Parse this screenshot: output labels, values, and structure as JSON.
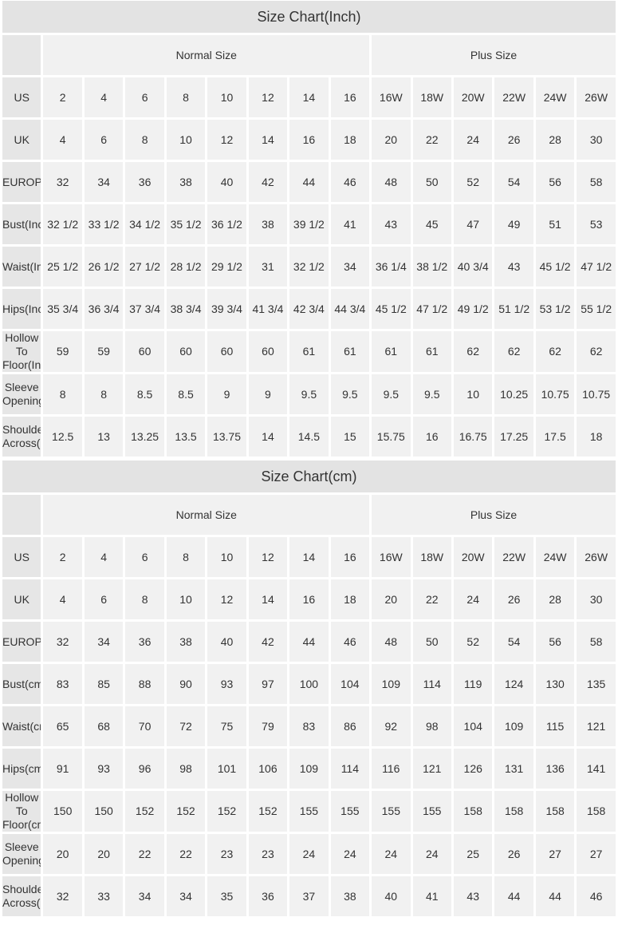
{
  "tables": [
    {
      "title": "Size Chart(Inch)",
      "group_headers": {
        "normal": "Normal Size",
        "plus": "Plus Size"
      },
      "normal_count": 8,
      "plus_count": 6,
      "rows": [
        {
          "label": "US",
          "values": [
            "2",
            "4",
            "6",
            "8",
            "10",
            "12",
            "14",
            "16",
            "16W",
            "18W",
            "20W",
            "22W",
            "24W",
            "26W"
          ]
        },
        {
          "label": "UK",
          "values": [
            "4",
            "6",
            "8",
            "10",
            "12",
            "14",
            "16",
            "18",
            "20",
            "22",
            "24",
            "26",
            "28",
            "30"
          ]
        },
        {
          "label": "EUROPE",
          "values": [
            "32",
            "34",
            "36",
            "38",
            "40",
            "42",
            "44",
            "46",
            "48",
            "50",
            "52",
            "54",
            "56",
            "58"
          ]
        },
        {
          "label": "Bust(Inch)",
          "values": [
            "32 1/2",
            "33 1/2",
            "34 1/2",
            "35 1/2",
            "36 1/2",
            "38",
            "39 1/2",
            "41",
            "43",
            "45",
            "47",
            "49",
            "51",
            "53"
          ]
        },
        {
          "label": "Waist(Inch)",
          "values": [
            "25 1/2",
            "26 1/2",
            "27 1/2",
            "28 1/2",
            "29 1/2",
            "31",
            "32 1/2",
            "34",
            "36 1/4",
            "38 1/2",
            "40 3/4",
            "43",
            "45 1/2",
            "47 1/2"
          ]
        },
        {
          "label": "Hips(Inch)",
          "values": [
            "35 3/4",
            "36 3/4",
            "37 3/4",
            "38 3/4",
            "39 3/4",
            "41 3/4",
            "42 3/4",
            "44 3/4",
            "45 1/2",
            "47 1/2",
            "49 1/2",
            "51 1/2",
            "53 1/2",
            "55 1/2"
          ]
        },
        {
          "label": "Hollow To Floor(Inch)",
          "values": [
            "59",
            "59",
            "60",
            "60",
            "60",
            "60",
            "61",
            "61",
            "61",
            "61",
            "62",
            "62",
            "62",
            "62"
          ]
        },
        {
          "label": "Sleeve Opening(Inch)",
          "values": [
            "8",
            "8",
            "8.5",
            "8.5",
            "9",
            "9",
            "9.5",
            "9.5",
            "9.5",
            "9.5",
            "10",
            "10.25",
            "10.75",
            "10.75"
          ]
        },
        {
          "label": "Shoulder Across(Inch)",
          "values": [
            "12.5",
            "13",
            "13.25",
            "13.5",
            "13.75",
            "14",
            "14.5",
            "15",
            "15.75",
            "16",
            "16.75",
            "17.25",
            "17.5",
            "18"
          ]
        }
      ]
    },
    {
      "title": "Size Chart(cm)",
      "group_headers": {
        "normal": "Normal Size",
        "plus": "Plus Size"
      },
      "normal_count": 8,
      "plus_count": 6,
      "rows": [
        {
          "label": "US",
          "values": [
            "2",
            "4",
            "6",
            "8",
            "10",
            "12",
            "14",
            "16",
            "16W",
            "18W",
            "20W",
            "22W",
            "24W",
            "26W"
          ]
        },
        {
          "label": "UK",
          "values": [
            "4",
            "6",
            "8",
            "10",
            "12",
            "14",
            "16",
            "18",
            "20",
            "22",
            "24",
            "26",
            "28",
            "30"
          ]
        },
        {
          "label": "EUROPE",
          "values": [
            "32",
            "34",
            "36",
            "38",
            "40",
            "42",
            "44",
            "46",
            "48",
            "50",
            "52",
            "54",
            "56",
            "58"
          ]
        },
        {
          "label": "Bust(cm)",
          "values": [
            "83",
            "85",
            "88",
            "90",
            "93",
            "97",
            "100",
            "104",
            "109",
            "114",
            "119",
            "124",
            "130",
            "135"
          ]
        },
        {
          "label": "Waist(cm)",
          "values": [
            "65",
            "68",
            "70",
            "72",
            "75",
            "79",
            "83",
            "86",
            "92",
            "98",
            "104",
            "109",
            "115",
            "121"
          ]
        },
        {
          "label": "Hips(cm)",
          "values": [
            "91",
            "93",
            "96",
            "98",
            "101",
            "106",
            "109",
            "114",
            "116",
            "121",
            "126",
            "131",
            "136",
            "141"
          ]
        },
        {
          "label": "Hollow To Floor(cm)",
          "values": [
            "150",
            "150",
            "152",
            "152",
            "152",
            "152",
            "155",
            "155",
            "155",
            "155",
            "158",
            "158",
            "158",
            "158"
          ]
        },
        {
          "label": "Sleeve Opening(cm)",
          "values": [
            "20",
            "20",
            "22",
            "22",
            "23",
            "23",
            "24",
            "24",
            "24",
            "24",
            "25",
            "26",
            "27",
            "27"
          ]
        },
        {
          "label": "Shoulder Across(cm)",
          "values": [
            "32",
            "33",
            "34",
            "34",
            "35",
            "36",
            "37",
            "38",
            "40",
            "41",
            "43",
            "44",
            "44",
            "46"
          ]
        }
      ]
    }
  ]
}
